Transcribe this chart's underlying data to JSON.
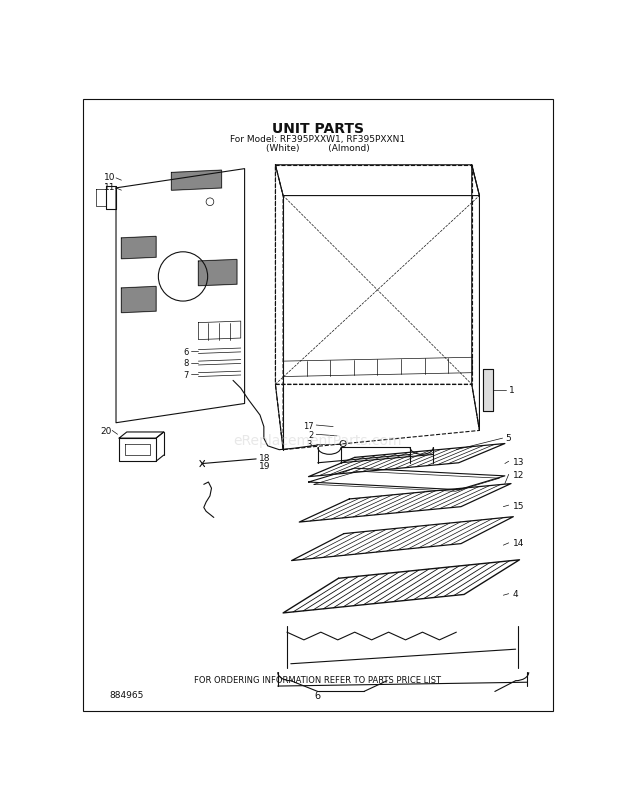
{
  "title": "UNIT PARTS",
  "subtitle_line1": "For Model: RF395PXXW1, RF395PXXN1",
  "subtitle_line2": "(White)          (Almond)",
  "footer": "FOR ORDERING INFORMATION REFER TO PARTS PRICE LIST",
  "page_number": "6",
  "doc_number": "884965",
  "watermark": "eReplacementParts.com",
  "bg": "#ffffff",
  "lc": "#111111"
}
